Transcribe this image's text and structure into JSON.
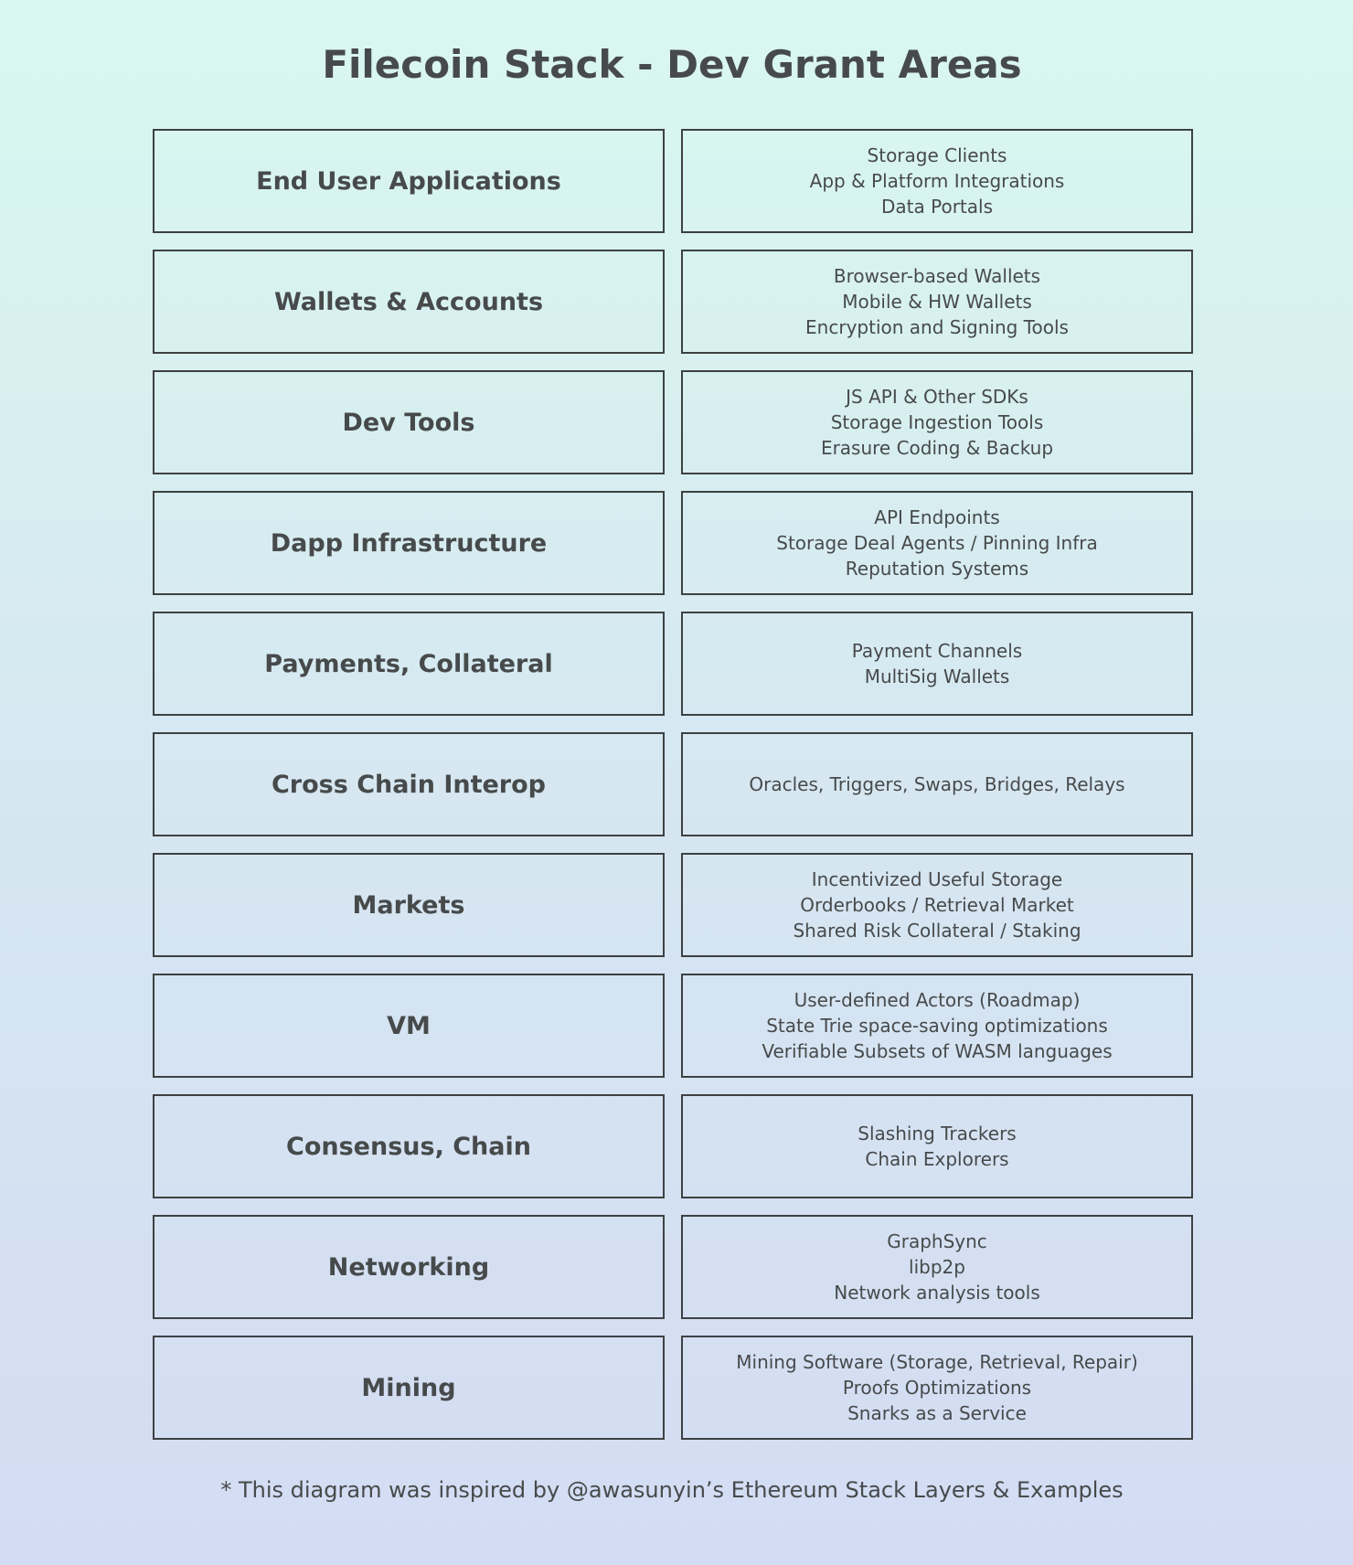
{
  "title": "Filecoin Stack - Dev Grant Areas",
  "rows": [
    {
      "label": "End User Applications",
      "items": [
        "Storage Clients",
        "App & Platform Integrations",
        "Data Portals"
      ]
    },
    {
      "label": "Wallets & Accounts",
      "items": [
        "Browser-based Wallets",
        "Mobile & HW Wallets",
        "Encryption and Signing Tools"
      ]
    },
    {
      "label": "Dev Tools",
      "items": [
        "JS API & Other SDKs",
        "Storage Ingestion Tools",
        "Erasure Coding & Backup"
      ]
    },
    {
      "label": "Dapp Infrastructure",
      "items": [
        "API Endpoints",
        "Storage Deal Agents / Pinning Infra",
        "Reputation Systems"
      ]
    },
    {
      "label": "Payments, Collateral",
      "items": [
        "Payment Channels",
        "MultiSig Wallets"
      ]
    },
    {
      "label": "Cross Chain Interop",
      "items": [
        "Oracles, Triggers, Swaps, Bridges, Relays"
      ]
    },
    {
      "label": "Markets",
      "items": [
        "Incentivized Useful Storage",
        "Orderbooks / Retrieval Market",
        "Shared Risk Collateral / Staking"
      ]
    },
    {
      "label": "VM",
      "items": [
        "User-defined Actors (Roadmap)",
        "State Trie space-saving optimizations",
        "Verifiable Subsets of WASM languages"
      ]
    },
    {
      "label": "Consensus, Chain",
      "items": [
        "Slashing Trackers",
        "Chain Explorers"
      ]
    },
    {
      "label": "Networking",
      "items": [
        "GraphSync",
        "libp2p",
        "Network analysis tools"
      ]
    },
    {
      "label": "Mining",
      "items": [
        "Mining Software (Storage, Retrieval, Repair)",
        "Proofs Optimizations",
        "Snarks as a Service"
      ]
    }
  ],
  "footnote": "* This diagram was inspired by @awasunyin’s Ethereum Stack Layers & Examples"
}
